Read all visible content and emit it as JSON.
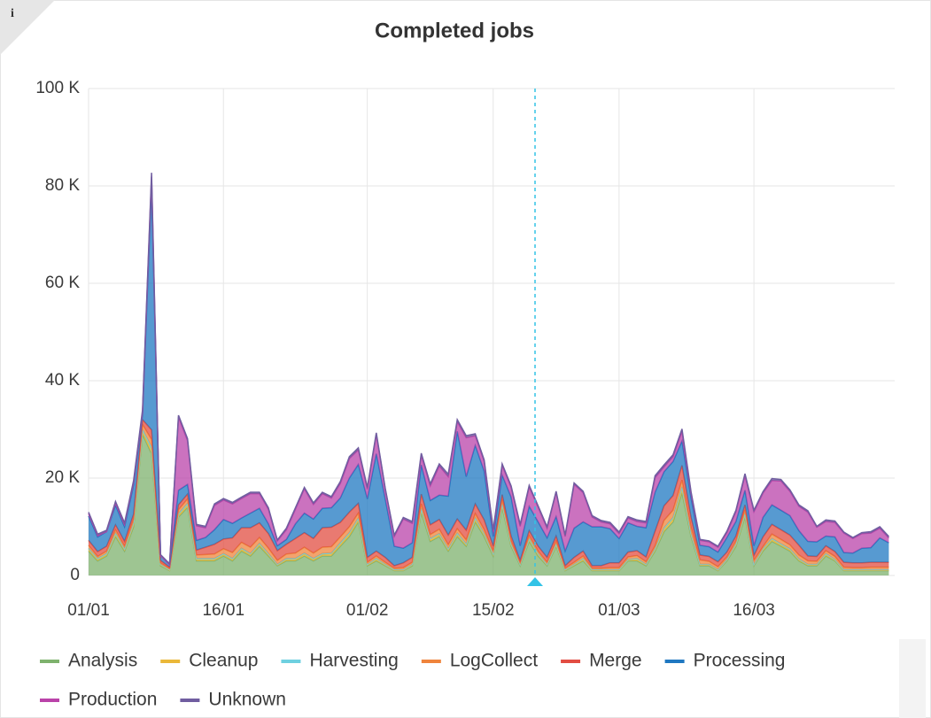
{
  "chart_data": {
    "type": "area",
    "stacked": true,
    "title": "Completed jobs",
    "categories": [
      "01/01",
      null,
      null,
      null,
      null,
      null,
      null,
      null,
      null,
      null,
      null,
      null,
      null,
      null,
      null,
      "16/01",
      null,
      null,
      null,
      null,
      null,
      null,
      null,
      null,
      null,
      null,
      null,
      null,
      null,
      null,
      null,
      "01/02",
      null,
      null,
      null,
      null,
      null,
      null,
      null,
      null,
      null,
      null,
      null,
      null,
      null,
      "15/02",
      null,
      null,
      null,
      null,
      null,
      null,
      null,
      null,
      null,
      null,
      null,
      null,
      null,
      "01/03",
      null,
      null,
      null,
      null,
      null,
      null,
      null,
      null,
      null,
      null,
      null,
      null,
      null,
      null,
      "16/03",
      null,
      null,
      null,
      null,
      null,
      null,
      null,
      null,
      null,
      null,
      null,
      null,
      null,
      null,
      null
    ],
    "ylim": [
      0,
      100000
    ],
    "yticks": [
      0,
      {
        "value": 20000,
        "label": "20 K"
      },
      {
        "value": 40000,
        "label": "40 K"
      },
      {
        "value": 60000,
        "label": "60 K"
      },
      {
        "value": 80000,
        "label": "80 K"
      },
      {
        "value": 100000,
        "label": "100 K"
      }
    ],
    "grid": true,
    "legend": "bottom",
    "series": [
      {
        "name": "Analysis",
        "color": "#7eb26d",
        "values": [
          5000,
          3000,
          4000,
          8000,
          5000,
          10000,
          29000,
          25000,
          2000,
          1000,
          12000,
          14000,
          3000,
          3000,
          3000,
          4000,
          3000,
          5000,
          4000,
          6000,
          4000,
          2000,
          3000,
          3000,
          4000,
          3000,
          4000,
          4000,
          6000,
          8000,
          11000,
          2000,
          3000,
          2000,
          1000,
          1000,
          2000,
          13000,
          7000,
          8000,
          5000,
          8000,
          6000,
          11000,
          8000,
          4000,
          14000,
          6000,
          2000,
          7000,
          4000,
          2000,
          6000,
          1000,
          2000,
          3000,
          1000,
          1000,
          1000,
          1000,
          3000,
          3000,
          2000,
          5000,
          9000,
          11000,
          17000,
          8000,
          2000,
          2000,
          1000,
          3000,
          6000,
          12000,
          2000,
          5000,
          7000,
          6000,
          5000,
          3000,
          2000,
          2000,
          4000,
          3000,
          1000,
          1000,
          1000,
          1000,
          1000,
          1000
        ]
      },
      {
        "name": "Cleanup",
        "color": "#eab839",
        "values": [
          400,
          300,
          300,
          400,
          300,
          500,
          600,
          800,
          200,
          100,
          400,
          500,
          300,
          300,
          300,
          300,
          300,
          400,
          300,
          400,
          300,
          200,
          300,
          300,
          400,
          300,
          300,
          400,
          400,
          500,
          500,
          200,
          300,
          200,
          100,
          100,
          200,
          500,
          400,
          400,
          300,
          400,
          300,
          500,
          400,
          300,
          500,
          300,
          200,
          400,
          300,
          200,
          300,
          100,
          200,
          300,
          100,
          100,
          100,
          100,
          200,
          300,
          200,
          300,
          500,
          600,
          800,
          400,
          200,
          200,
          100,
          200,
          300,
          500,
          200,
          300,
          400,
          300,
          300,
          200,
          200,
          200,
          300,
          200,
          100,
          100,
          100,
          100,
          100,
          100
        ]
      },
      {
        "name": "Harvesting",
        "color": "#6ed0e0",
        "values": [
          200,
          200,
          200,
          300,
          200,
          300,
          400,
          600,
          100,
          100,
          300,
          300,
          200,
          200,
          200,
          200,
          200,
          200,
          200,
          200,
          200,
          100,
          200,
          200,
          200,
          200,
          200,
          200,
          300,
          300,
          300,
          100,
          200,
          100,
          100,
          100,
          100,
          300,
          200,
          200,
          200,
          300,
          200,
          300,
          200,
          200,
          300,
          200,
          100,
          200,
          200,
          100,
          200,
          100,
          100,
          200,
          100,
          100,
          100,
          100,
          100,
          200,
          100,
          200,
          300,
          300,
          400,
          200,
          100,
          100,
          100,
          100,
          200,
          300,
          100,
          200,
          200,
          200,
          200,
          200,
          100,
          100,
          200,
          100,
          100,
          100,
          100,
          100,
          100,
          100
        ]
      },
      {
        "name": "LogCollect",
        "color": "#ef843c",
        "values": [
          600,
          400,
          500,
          700,
          500,
          800,
          1000,
          1500,
          300,
          200,
          800,
          900,
          700,
          800,
          900,
          1000,
          1200,
          1200,
          1300,
          1200,
          1100,
          800,
          900,
          1100,
          1200,
          1100,
          1300,
          1300,
          1200,
          1200,
          1000,
          400,
          500,
          400,
          300,
          400,
          400,
          900,
          800,
          900,
          800,
          900,
          800,
          900,
          800,
          500,
          800,
          600,
          300,
          600,
          500,
          400,
          600,
          300,
          400,
          500,
          300,
          300,
          400,
          400,
          500,
          600,
          500,
          600,
          1500,
          1500,
          1400,
          1300,
          900,
          600,
          600,
          500,
          600,
          700,
          800,
          400,
          900,
          900,
          800,
          800,
          700,
          600,
          600,
          600,
          500,
          400,
          400,
          500,
          500,
          500
        ]
      },
      {
        "name": "Merge",
        "color": "#e24d42",
        "values": [
          1000,
          1000,
          1000,
          1000,
          1000,
          1000,
          1000,
          2000,
          500,
          300,
          1000,
          1000,
          1000,
          1500,
          2000,
          2000,
          3000,
          3000,
          4000,
          3000,
          3000,
          2000,
          2000,
          3000,
          3000,
          3000,
          4000,
          4000,
          3000,
          3000,
          2000,
          1000,
          1000,
          1000,
          500,
          1000,
          1000,
          2000,
          2000,
          2000,
          2000,
          2000,
          2000,
          2000,
          2000,
          1000,
          1000,
          1000,
          500,
          1000,
          1000,
          1000,
          1000,
          500,
          1000,
          1000,
          500,
          500,
          1000,
          1000,
          1000,
          1000,
          1000,
          3000,
          3000,
          3000,
          3000,
          2000,
          1000,
          1000,
          1000,
          1000,
          1000,
          1000,
          1000,
          2000,
          2000,
          2000,
          2000,
          2000,
          1000,
          1000,
          1000,
          1000,
          1000,
          1000,
          1000,
          1000,
          1000,
          1000
        ]
      },
      {
        "name": "Processing",
        "color": "#1f78c1",
        "values": [
          5000,
          3000,
          3000,
          4000,
          3000,
          6000,
          1000,
          50000,
          1000,
          500,
          3000,
          2000,
          2000,
          2000,
          3000,
          4000,
          3000,
          2000,
          3000,
          3000,
          2000,
          1000,
          1000,
          3000,
          4000,
          4000,
          4000,
          4000,
          5000,
          7000,
          8000,
          12000,
          20000,
          12000,
          4000,
          3000,
          3000,
          6000,
          5000,
          5000,
          8000,
          18000,
          11000,
          12000,
          10000,
          2000,
          4000,
          8000,
          3000,
          5000,
          5000,
          4000,
          4000,
          3000,
          6000,
          6000,
          8000,
          8000,
          7000,
          5000,
          6000,
          5000,
          6000,
          8000,
          7000,
          7000,
          5000,
          4000,
          2000,
          2000,
          2000,
          3000,
          3000,
          3000,
          2000,
          4000,
          4000,
          4000,
          4000,
          3000,
          3000,
          3000,
          2000,
          3000,
          2000,
          2000,
          3000,
          3000,
          5000,
          4000
        ]
      },
      {
        "name": "Production",
        "color": "#ba43a9",
        "values": [
          500,
          300,
          0,
          500,
          500,
          500,
          500,
          2000,
          0,
          0,
          15000,
          9000,
          3000,
          2000,
          5000,
          4000,
          4000,
          4000,
          4000,
          3000,
          3000,
          1000,
          2000,
          3000,
          5000,
          3000,
          3000,
          2000,
          3000,
          4000,
          3000,
          2000,
          4000,
          2000,
          2000,
          6000,
          4000,
          2000,
          3000,
          6000,
          4000,
          2000,
          8000,
          2000,
          2000,
          1000,
          2000,
          2000,
          4000,
          4000,
          3000,
          2000,
          5000,
          3000,
          9000,
          6000,
          2000,
          1000,
          1000,
          1000,
          1000,
          1000,
          1000,
          3000,
          1000,
          1000,
          2000,
          1000,
          1000,
          1000,
          1000,
          1000,
          2000,
          3000,
          7000,
          5000,
          5000,
          6000,
          5000,
          5000,
          6000,
          3000,
          3000,
          3000,
          4000,
          3000,
          3000,
          3000,
          2000,
          1000
        ]
      },
      {
        "name": "Unknown",
        "color": "#705da0",
        "values": [
          300,
          300,
          300,
          300,
          300,
          400,
          500,
          800,
          200,
          200,
          400,
          400,
          300,
          300,
          300,
          300,
          300,
          300,
          300,
          300,
          300,
          200,
          300,
          300,
          300,
          300,
          300,
          300,
          400,
          400,
          400,
          400,
          300,
          200,
          300,
          300,
          400,
          400,
          400,
          400,
          500,
          400,
          400,
          400,
          300,
          400,
          300,
          300,
          400,
          300,
          300,
          300,
          200,
          300,
          300,
          300,
          300,
          300,
          300,
          300,
          300,
          300,
          300,
          400,
          400,
          400,
          500,
          300,
          200,
          200,
          200,
          300,
          300,
          400,
          300,
          300,
          400,
          300,
          300,
          300,
          300,
          200,
          300,
          300,
          200,
          200,
          200,
          300,
          300,
          300
        ]
      }
    ]
  }
}
